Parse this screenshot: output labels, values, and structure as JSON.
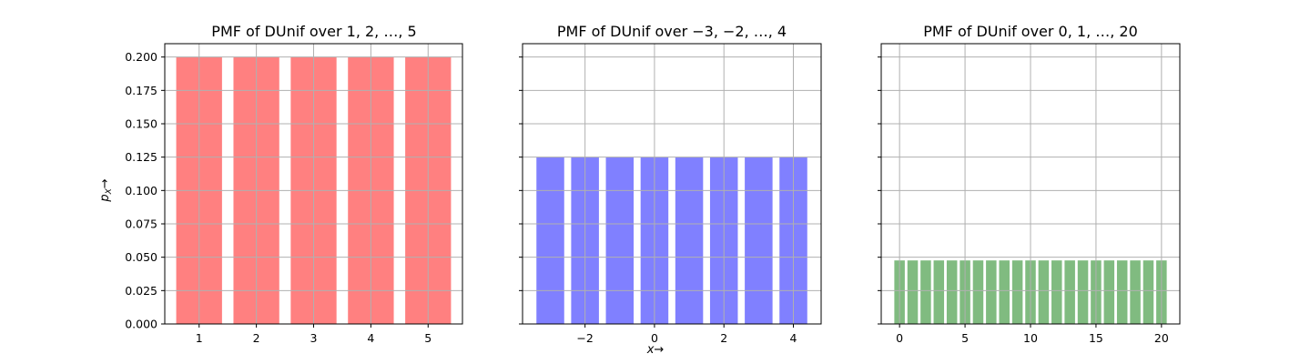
{
  "figure": {
    "shared_ylabel": "p_X →",
    "shared_ylabel_main": "p",
    "shared_ylabel_sub": "X",
    "shared_ylabel_arrow": "→",
    "shared_xlabel": "x →",
    "shared_xlabel_main": "x",
    "shared_xlabel_arrow": "→"
  },
  "chart_data": [
    {
      "type": "bar",
      "title": "PMF of DUnif over 1, 2, …, 5",
      "color": "#ff8080",
      "x": [
        1,
        2,
        3,
        4,
        5
      ],
      "values": [
        0.2,
        0.2,
        0.2,
        0.2,
        0.2
      ],
      "xlim": [
        0.4,
        5.6
      ],
      "ylim": [
        0,
        0.21
      ],
      "xticks": [
        1,
        2,
        3,
        4,
        5
      ],
      "xtick_labels": [
        "1",
        "2",
        "3",
        "4",
        "5"
      ],
      "yticks": [
        0,
        0.025,
        0.05,
        0.075,
        0.1,
        0.125,
        0.15,
        0.175,
        0.2
      ],
      "ytick_labels": [
        "0.000",
        "0.025",
        "0.050",
        "0.075",
        "0.100",
        "0.125",
        "0.150",
        "0.175",
        "0.200"
      ],
      "grid": true
    },
    {
      "type": "bar",
      "title": "PMF of DUnif over −3, −2, …, 4",
      "color": "#8080ff",
      "x": [
        -3,
        -2,
        -1,
        0,
        1,
        2,
        3,
        4
      ],
      "values": [
        0.125,
        0.125,
        0.125,
        0.125,
        0.125,
        0.125,
        0.125,
        0.125
      ],
      "xlim": [
        -3.8,
        4.8
      ],
      "ylim": [
        0,
        0.21
      ],
      "xticks": [
        -2,
        0,
        2,
        4
      ],
      "xtick_labels": [
        "−2",
        "0",
        "2",
        "4"
      ],
      "yticks": [
        0,
        0.025,
        0.05,
        0.075,
        0.1,
        0.125,
        0.15,
        0.175,
        0.2
      ],
      "ytick_labels": [],
      "grid": true
    },
    {
      "type": "bar",
      "title": "PMF of DUnif over 0, 1, …, 20",
      "color": "#80bb80",
      "x": [
        0,
        1,
        2,
        3,
        4,
        5,
        6,
        7,
        8,
        9,
        10,
        11,
        12,
        13,
        14,
        15,
        16,
        17,
        18,
        19,
        20
      ],
      "values": [
        0.0476,
        0.0476,
        0.0476,
        0.0476,
        0.0476,
        0.0476,
        0.0476,
        0.0476,
        0.0476,
        0.0476,
        0.0476,
        0.0476,
        0.0476,
        0.0476,
        0.0476,
        0.0476,
        0.0476,
        0.0476,
        0.0476,
        0.0476,
        0.0476
      ],
      "xlim": [
        -1.4,
        21.4
      ],
      "ylim": [
        0,
        0.21
      ],
      "xticks": [
        0,
        5,
        10,
        15,
        20
      ],
      "xtick_labels": [
        "0",
        "5",
        "10",
        "15",
        "20"
      ],
      "yticks": [
        0,
        0.025,
        0.05,
        0.075,
        0.1,
        0.125,
        0.15,
        0.175,
        0.2
      ],
      "ytick_labels": [],
      "grid": true
    }
  ]
}
